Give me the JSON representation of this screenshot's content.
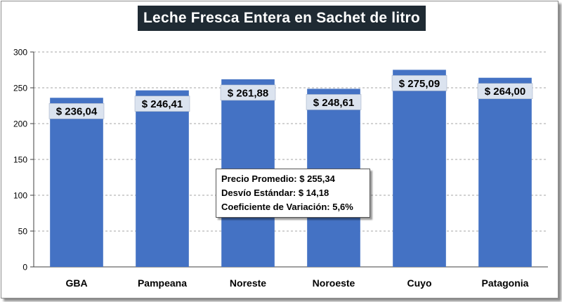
{
  "chart_data": {
    "type": "bar",
    "title": "Leche Fresca Entera en Sachet de litro",
    "categories": [
      "GBA",
      "Pampeana",
      "Noreste",
      "Noroeste",
      "Cuyo",
      "Patagonia"
    ],
    "values": [
      236.04,
      246.41,
      261.88,
      248.61,
      275.09,
      264.0
    ],
    "data_labels": [
      "$ 236,04",
      "$ 246,41",
      "$ 261,88",
      "$ 248,61",
      "$ 275,09",
      "$ 264,00"
    ],
    "ylim": [
      0,
      300
    ],
    "yticks": [
      0,
      50,
      100,
      150,
      200,
      250,
      300
    ],
    "xlabel": "",
    "ylabel": "",
    "grid": true,
    "bar_color": "#4472c4",
    "annotation": {
      "line1": "Precio Promedio: $ 255,34",
      "line2": "Desvío Estándar: $ 14,18",
      "line3": "Coeficiente de Variación: 5,6%"
    }
  }
}
